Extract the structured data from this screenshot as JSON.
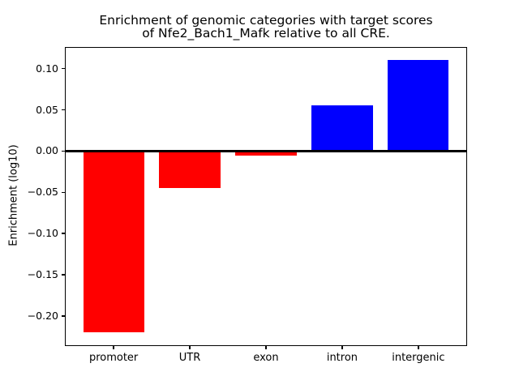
{
  "figure": {
    "background": "#ffffff"
  },
  "chart_data": {
    "type": "bar",
    "title": "Enrichment of genomic categories with target scores of Nfe2_Bach1_Mafk relative to all CRE.",
    "title_line1": "Enrichment of genomic categories with target scores",
    "title_line2": "of Nfe2_Bach1_Mafk relative to all CRE.",
    "xlabel": "",
    "ylabel": "Enrichment (log10)",
    "categories": [
      "promoter",
      "UTR",
      "exon",
      "intron",
      "intergenic"
    ],
    "values": [
      -0.22,
      -0.045,
      -0.006,
      0.055,
      0.11
    ],
    "bar_colors": [
      "#ff0000",
      "#ff0000",
      "#ff0000",
      "#0000ff",
      "#0000ff"
    ],
    "negative_color": "#ff0000",
    "positive_color": "#0000ff",
    "bar_width": 0.8,
    "xlim": [
      -0.64,
      4.64
    ],
    "ylim": [
      -0.2365,
      0.1267
    ],
    "yticks": [
      0.1,
      0.05,
      0.0,
      -0.05,
      -0.1,
      -0.15,
      -0.2
    ],
    "ytick_labels": [
      "0.10",
      "0.05",
      "0.00",
      "−0.05",
      "−0.10",
      "−0.15",
      "−0.20"
    ],
    "zero_line": true,
    "grid": false,
    "legend": null,
    "axis_color": "#000000",
    "text_color": "#000000"
  }
}
